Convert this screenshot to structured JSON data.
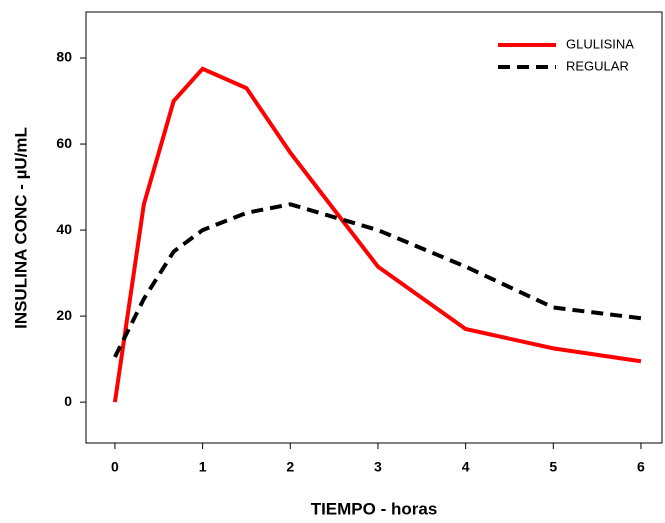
{
  "chart_data": {
    "type": "line",
    "x_label": "TIEMPO - horas",
    "y_label": "INSULINA CONC - µU/mL",
    "x": [
      0,
      0.33,
      0.67,
      1,
      1.5,
      2,
      3,
      4,
      5,
      6
    ],
    "series": [
      {
        "name": "GLULISINA",
        "color": "#ff0000",
        "dash": "solid",
        "values": [
          0,
          46,
          70,
          77.5,
          73,
          58,
          31.5,
          17,
          12.5,
          9.5
        ]
      },
      {
        "name": "REGULAR",
        "color": "#000000",
        "dash": "dashed",
        "values": [
          10.5,
          24,
          35,
          40,
          44,
          46,
          40,
          31.5,
          22,
          19.5
        ]
      }
    ],
    "xlim": [
      -0.33,
      6.24
    ],
    "ylim": [
      -9.5,
      90.7
    ],
    "xticks": [
      0,
      1,
      2,
      3,
      4,
      5,
      6
    ],
    "yticks": [
      0,
      20,
      40,
      60,
      80
    ],
    "legend": "top-right"
  }
}
